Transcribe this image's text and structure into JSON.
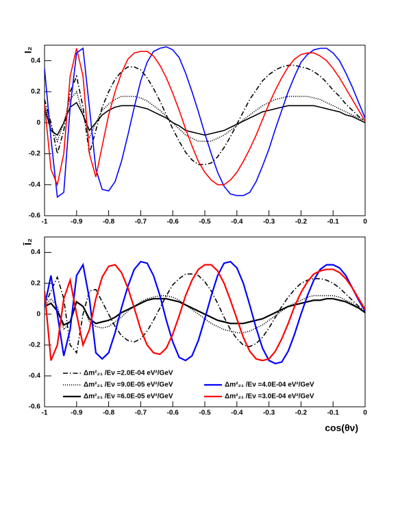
{
  "chart_data": [
    {
      "type": "line",
      "ylabel": "I₂",
      "x": [
        -1,
        -0.98,
        -0.96,
        -0.94,
        -0.92,
        -0.9,
        -0.88,
        -0.86,
        -0.84,
        -0.82,
        -0.8,
        -0.78,
        -0.76,
        -0.74,
        -0.72,
        -0.7,
        -0.68,
        -0.66,
        -0.64,
        -0.62,
        -0.6,
        -0.58,
        -0.56,
        -0.54,
        -0.52,
        -0.5,
        -0.48,
        -0.46,
        -0.44,
        -0.42,
        -0.4,
        -0.38,
        -0.36,
        -0.34,
        -0.32,
        -0.3,
        -0.28,
        -0.26,
        -0.24,
        -0.22,
        -0.2,
        -0.18,
        -0.16,
        -0.14,
        -0.12,
        -0.1,
        -0.08,
        -0.06,
        -0.04,
        -0.02,
        0
      ],
      "xlim": [
        -1,
        0
      ],
      "xticks": [
        -1,
        -0.9,
        -0.8,
        -0.7,
        -0.6,
        -0.5,
        -0.4,
        -0.3,
        -0.2,
        -0.1,
        0
      ],
      "ylim": [
        -0.6,
        0.5
      ],
      "yticks": [
        -0.6,
        -0.4,
        -0.2,
        0,
        0.2,
        0.4
      ],
      "series": [
        {
          "color": "#000000",
          "style": "dashdot",
          "values": [
            0.15,
            0,
            -0.2,
            -0.05,
            0.2,
            0.3,
            0.1,
            -0.2,
            -0.05,
            0.1,
            0.2,
            0.28,
            0.33,
            0.36,
            0.36,
            0.34,
            0.29,
            0.22,
            0.14,
            0.05,
            -0.04,
            -0.12,
            -0.19,
            -0.24,
            -0.27,
            -0.27,
            -0.26,
            -0.22,
            -0.16,
            -0.09,
            -0.01,
            0.07,
            0.15,
            0.21,
            0.27,
            0.31,
            0.34,
            0.36,
            0.37,
            0.37,
            0.36,
            0.35,
            0.33,
            0.3,
            0.26,
            0.21,
            0.17,
            0.12,
            0.08,
            0.04,
            0.01
          ]
        },
        {
          "color": "#000000",
          "style": "dotted",
          "values": [
            0.12,
            -0.02,
            -0.12,
            0,
            0.15,
            0.2,
            0.05,
            -0.1,
            0,
            0.08,
            0.12,
            0.15,
            0.17,
            0.17,
            0.17,
            0.16,
            0.14,
            0.11,
            0.08,
            0.04,
            0,
            -0.04,
            -0.08,
            -0.1,
            -0.12,
            -0.12,
            -0.12,
            -0.1,
            -0.08,
            -0.05,
            -0.02,
            0.02,
            0.05,
            0.08,
            0.11,
            0.13,
            0.15,
            0.16,
            0.17,
            0.17,
            0.17,
            0.17,
            0.16,
            0.15,
            0.13,
            0.11,
            0.09,
            0.07,
            0.05,
            0.03,
            0.01
          ]
        },
        {
          "color": "#000000",
          "style": "solid",
          "values": [
            0.1,
            -0.05,
            -0.08,
            0,
            0.1,
            0.13,
            0.05,
            -0.05,
            0,
            0.05,
            0.08,
            0.1,
            0.11,
            0.11,
            0.11,
            0.1,
            0.09,
            0.07,
            0.05,
            0.03,
            0,
            -0.02,
            -0.05,
            -0.06,
            -0.07,
            -0.08,
            -0.07,
            -0.06,
            -0.05,
            -0.03,
            -0.01,
            0.01,
            0.03,
            0.05,
            0.07,
            0.08,
            0.09,
            0.1,
            0.11,
            0.11,
            0.11,
            0.11,
            0.11,
            0.1,
            0.09,
            0.08,
            0.07,
            0.05,
            0.04,
            0.02,
            0
          ]
        },
        {
          "color": "#0000ff",
          "style": "solid",
          "values": [
            0.35,
            -0.1,
            -0.48,
            -0.45,
            0.1,
            0.45,
            0.48,
            0.1,
            -0.3,
            -0.43,
            -0.44,
            -0.38,
            -0.25,
            -0.08,
            0.1,
            0.27,
            0.39,
            0.46,
            0.48,
            0.49,
            0.47,
            0.42,
            0.32,
            0.2,
            0.07,
            -0.07,
            -0.2,
            -0.32,
            -0.41,
            -0.46,
            -0.47,
            -0.47,
            -0.45,
            -0.38,
            -0.28,
            -0.17,
            -0.04,
            0.08,
            0.2,
            0.3,
            0.39,
            0.44,
            0.47,
            0.48,
            0.48,
            0.45,
            0.4,
            0.32,
            0.23,
            0.13,
            0.03
          ]
        },
        {
          "color": "#ff0000",
          "style": "solid",
          "values": [
            0.12,
            -0.3,
            -0.4,
            -0.2,
            0.3,
            0.48,
            0.3,
            -0.2,
            -0.35,
            -0.15,
            0.05,
            0.2,
            0.32,
            0.41,
            0.45,
            0.46,
            0.46,
            0.43,
            0.37,
            0.29,
            0.19,
            0.08,
            -0.04,
            -0.15,
            -0.25,
            -0.32,
            -0.37,
            -0.4,
            -0.4,
            -0.37,
            -0.32,
            -0.25,
            -0.17,
            -0.08,
            0.02,
            0.12,
            0.21,
            0.29,
            0.36,
            0.41,
            0.44,
            0.45,
            0.45,
            0.43,
            0.4,
            0.35,
            0.29,
            0.22,
            0.15,
            0.08,
            0.01
          ]
        }
      ]
    },
    {
      "type": "line",
      "ylabel": "Ī₂",
      "xlabel": "cos(θν)",
      "x": [
        -1,
        -0.98,
        -0.96,
        -0.94,
        -0.92,
        -0.9,
        -0.88,
        -0.86,
        -0.84,
        -0.82,
        -0.8,
        -0.78,
        -0.76,
        -0.74,
        -0.72,
        -0.7,
        -0.68,
        -0.66,
        -0.64,
        -0.62,
        -0.6,
        -0.58,
        -0.56,
        -0.54,
        -0.52,
        -0.5,
        -0.48,
        -0.46,
        -0.44,
        -0.42,
        -0.4,
        -0.38,
        -0.36,
        -0.34,
        -0.32,
        -0.3,
        -0.28,
        -0.26,
        -0.24,
        -0.22,
        -0.2,
        -0.18,
        -0.16,
        -0.14,
        -0.12,
        -0.1,
        -0.08,
        -0.06,
        -0.04,
        -0.02,
        0
      ],
      "xlim": [
        -1,
        0
      ],
      "xticks": [
        -1,
        -0.9,
        -0.8,
        -0.7,
        -0.6,
        -0.5,
        -0.4,
        -0.3,
        -0.2,
        -0.1,
        0
      ],
      "ylim": [
        -0.6,
        0.5
      ],
      "yticks": [
        -0.6,
        -0.4,
        -0.2,
        0,
        0.2,
        0.4
      ],
      "series": [
        {
          "name": "Δm²₂₁ /Eν =2.0E-04 eV²/GeV",
          "color": "#000000",
          "style": "dashdot",
          "values": [
            0.05,
            0.15,
            0.24,
            0.1,
            -0.2,
            -0.25,
            0,
            0.15,
            0.16,
            0.08,
            0,
            -0.08,
            -0.14,
            -0.17,
            -0.18,
            -0.16,
            -0.11,
            -0.04,
            0.04,
            0.12,
            0.19,
            0.23,
            0.26,
            0.26,
            0.25,
            0.21,
            0.15,
            0.07,
            -0.02,
            -0.1,
            -0.16,
            -0.2,
            -0.21,
            -0.19,
            -0.15,
            -0.09,
            -0.02,
            0.05,
            0.11,
            0.16,
            0.2,
            0.22,
            0.23,
            0.23,
            0.22,
            0.2,
            0.17,
            0.13,
            0.09,
            0.05,
            0.02
          ]
        },
        {
          "name": "Δm²₂₁ /Eν =9.0E-05 eV²/GeV",
          "color": "#000000",
          "style": "dotted",
          "values": [
            0.05,
            0.1,
            0.05,
            -0.1,
            -0.05,
            0.08,
            0.05,
            -0.05,
            -0.08,
            -0.09,
            -0.08,
            -0.05,
            -0.02,
            0.02,
            0.05,
            0.08,
            0.1,
            0.11,
            0.12,
            0.12,
            0.11,
            0.09,
            0.06,
            0.03,
            0,
            -0.03,
            -0.06,
            -0.08,
            -0.1,
            -0.11,
            -0.12,
            -0.12,
            -0.11,
            -0.09,
            -0.07,
            -0.04,
            -0.01,
            0.02,
            0.05,
            0.07,
            0.09,
            0.11,
            0.12,
            0.12,
            0.12,
            0.12,
            0.11,
            0.09,
            0.07,
            0.04,
            0.01
          ]
        },
        {
          "name": "Δm²₂₁ /Eν =6.0E-05 eV²/GeV",
          "color": "#000000",
          "style": "solid",
          "values": [
            0.05,
            0.07,
            0.02,
            -0.07,
            -0.05,
            0.08,
            0.05,
            -0.03,
            -0.06,
            -0.05,
            -0.04,
            -0.02,
            0.01,
            0.03,
            0.05,
            0.07,
            0.09,
            0.1,
            0.1,
            0.1,
            0.09,
            0.08,
            0.06,
            0.04,
            0.02,
            0,
            -0.02,
            -0.04,
            -0.05,
            -0.06,
            -0.06,
            -0.06,
            -0.05,
            -0.04,
            -0.03,
            -0.01,
            0.01,
            0.03,
            0.05,
            0.06,
            0.07,
            0.08,
            0.09,
            0.09,
            0.1,
            0.1,
            0.09,
            0.08,
            0.06,
            0.04,
            0.01
          ]
        },
        {
          "name": "Δm²₂₁ /Eν =4.0E-04 eV²/GeV",
          "color": "#0000ff",
          "style": "solid",
          "values": [
            0.05,
            0.25,
            0,
            -0.27,
            -0.1,
            0.25,
            0.32,
            0.1,
            -0.25,
            -0.29,
            -0.25,
            -0.12,
            0.04,
            0.18,
            0.29,
            0.34,
            0.33,
            0.25,
            0.12,
            -0.04,
            -0.18,
            -0.28,
            -0.3,
            -0.27,
            -0.17,
            -0.03,
            0.12,
            0.25,
            0.33,
            0.34,
            0.3,
            0.2,
            0.06,
            -0.09,
            -0.22,
            -0.3,
            -0.32,
            -0.31,
            -0.24,
            -0.13,
            0,
            0.12,
            0.22,
            0.29,
            0.32,
            0.32,
            0.3,
            0.25,
            0.17,
            0.09,
            0.02
          ]
        },
        {
          "name": "Δm²₂₁ /Eν =3.0E-04 eV²/GeV",
          "color": "#ff0000",
          "style": "solid",
          "values": [
            0.15,
            -0.3,
            -0.2,
            0.1,
            0.22,
            0,
            -0.2,
            -0.1,
            0.1,
            0.24,
            0.31,
            0.32,
            0.27,
            0.17,
            0.04,
            -0.1,
            -0.2,
            -0.25,
            -0.26,
            -0.22,
            -0.13,
            -0.01,
            0.12,
            0.22,
            0.29,
            0.32,
            0.32,
            0.28,
            0.2,
            0.09,
            -0.03,
            -0.15,
            -0.24,
            -0.29,
            -0.3,
            -0.29,
            -0.24,
            -0.16,
            -0.06,
            0.05,
            0.14,
            0.21,
            0.26,
            0.28,
            0.29,
            0.29,
            0.27,
            0.23,
            0.17,
            0.1,
            0.03
          ]
        }
      ]
    }
  ]
}
